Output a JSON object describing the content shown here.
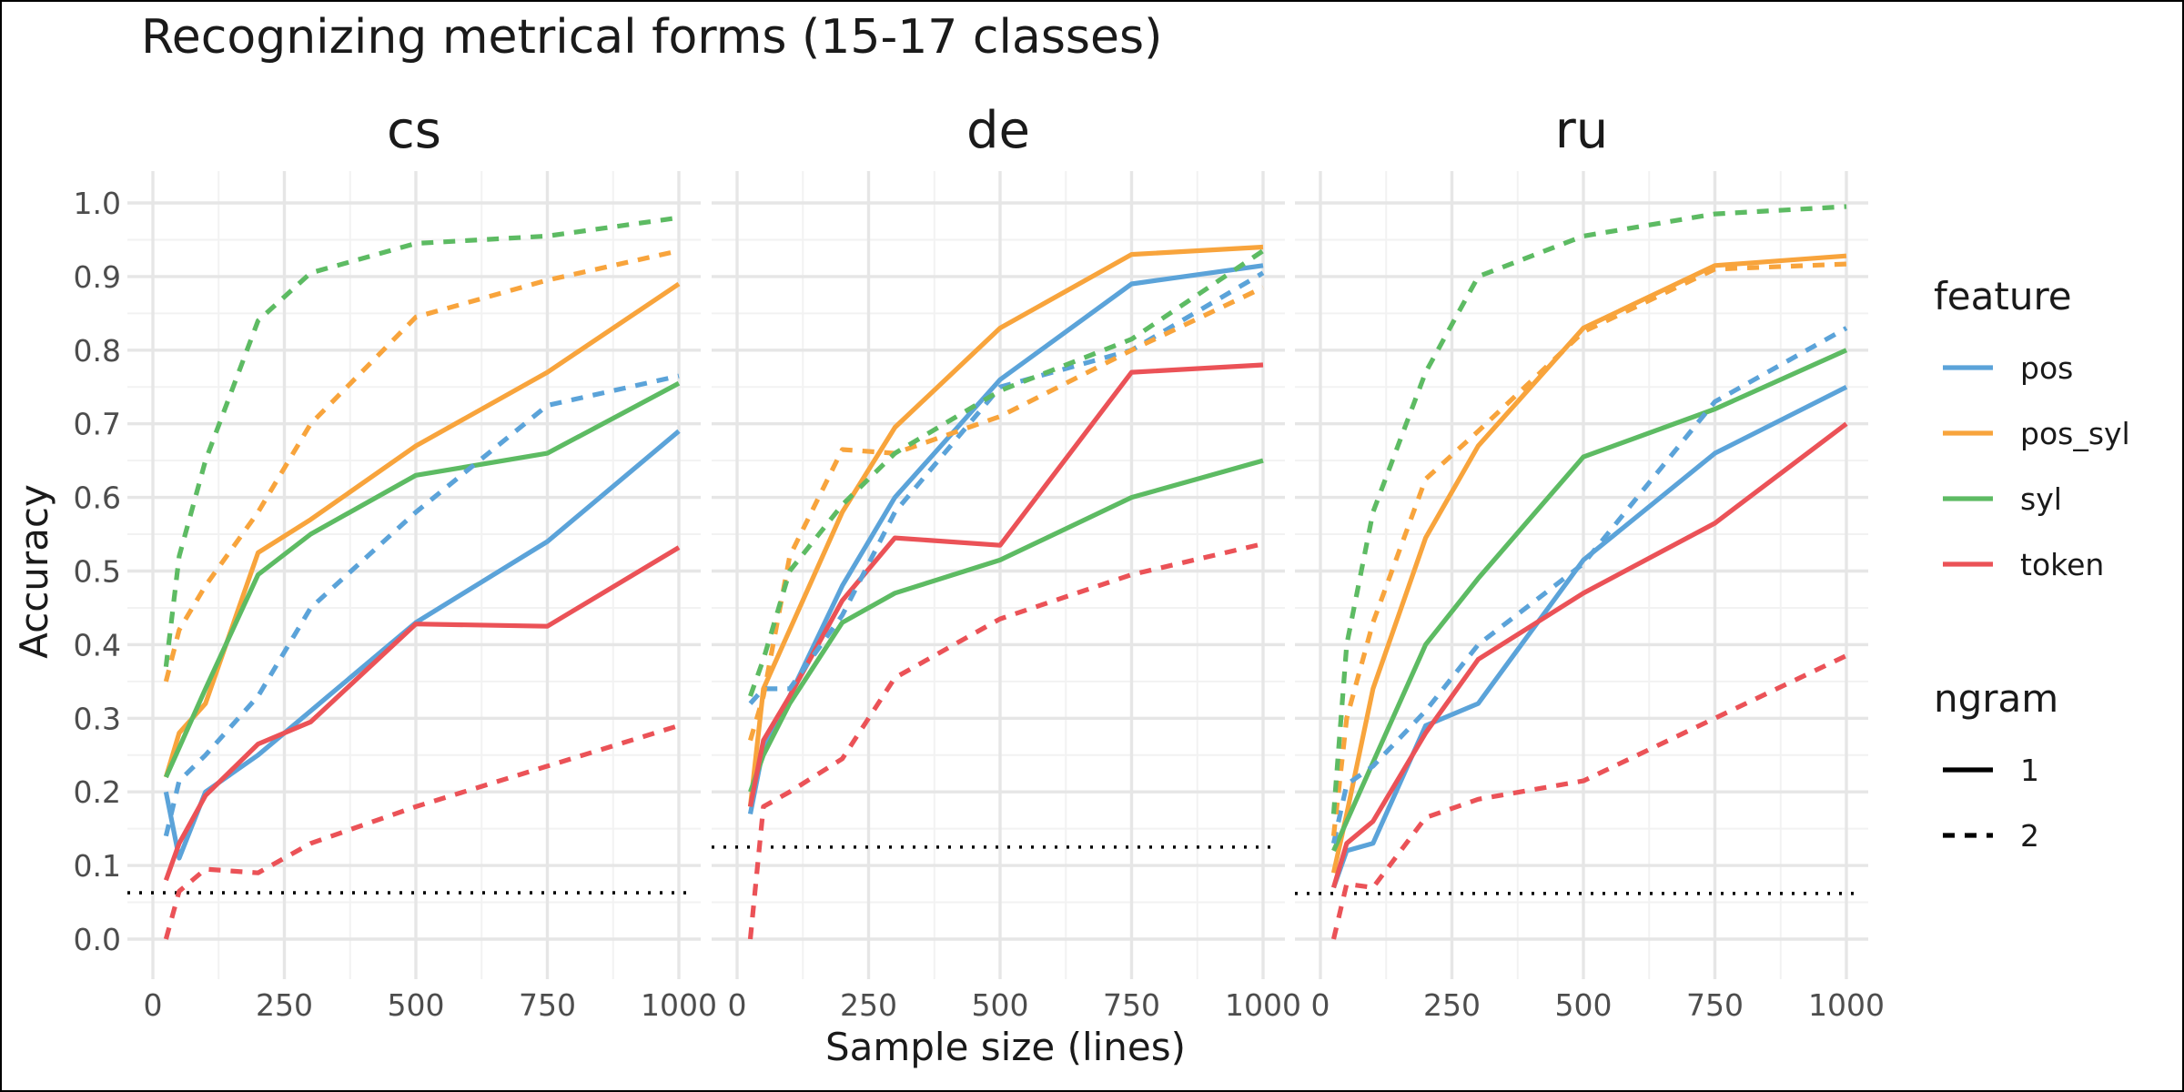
{
  "chart_data": {
    "type": "line",
    "title": "Recognizing metrical forms (15-17 classes)",
    "xlabel": "Sample size (lines)",
    "ylabel": "Accuracy",
    "xlim": [
      0,
      1000
    ],
    "ylim": [
      0,
      1.0
    ],
    "x_ticks": [
      0,
      250,
      500,
      750,
      1000
    ],
    "y_ticks": [
      0.0,
      0.1,
      0.2,
      0.3,
      0.4,
      0.5,
      0.6,
      0.7,
      0.8,
      0.9,
      1.0
    ],
    "x_tick_labels": [
      "0",
      "250",
      "500",
      "750",
      "1000"
    ],
    "y_tick_labels": [
      "0.0",
      "0.1",
      "0.2",
      "0.3",
      "0.4",
      "0.5",
      "0.6",
      "0.7",
      "0.8",
      "0.9",
      "1.0"
    ],
    "x": [
      25,
      50,
      100,
      200,
      300,
      500,
      750,
      1000
    ],
    "grid": true,
    "legend": {
      "placement": "right",
      "feature_title": "feature",
      "features": [
        {
          "key": "pos",
          "label": "pos",
          "color": "#5BA3D9"
        },
        {
          "key": "pos_syl",
          "label": "pos_syl",
          "color": "#F8A43C"
        },
        {
          "key": "syl",
          "label": "syl",
          "color": "#5DBB63"
        },
        {
          "key": "token",
          "label": "token",
          "color": "#EB5257"
        }
      ],
      "ngram_title": "ngram",
      "ngrams": [
        {
          "key": "1",
          "label": "1",
          "style": "solid"
        },
        {
          "key": "2",
          "label": "2",
          "style": "dashed"
        }
      ]
    },
    "facets": [
      {
        "name": "cs",
        "baseline": 0.063,
        "series": [
          {
            "feature": "pos",
            "ngram": "1",
            "values": [
              0.2,
              0.11,
              0.2,
              0.25,
              0.31,
              0.43,
              0.54,
              0.69
            ]
          },
          {
            "feature": "pos_syl",
            "ngram": "1",
            "values": [
              0.22,
              0.28,
              0.32,
              0.525,
              0.57,
              0.67,
              0.77,
              0.89
            ]
          },
          {
            "feature": "syl",
            "ngram": "1",
            "values": [
              0.22,
              0.26,
              0.34,
              0.495,
              0.55,
              0.63,
              0.66,
              0.755
            ]
          },
          {
            "feature": "token",
            "ngram": "1",
            "values": [
              0.08,
              0.13,
              0.195,
              0.265,
              0.295,
              0.428,
              0.425,
              0.532
            ]
          },
          {
            "feature": "pos",
            "ngram": "2",
            "values": [
              0.14,
              0.215,
              0.25,
              0.33,
              0.45,
              0.58,
              0.725,
              0.765
            ]
          },
          {
            "feature": "pos_syl",
            "ngram": "2",
            "values": [
              0.35,
              0.42,
              0.48,
              0.58,
              0.7,
              0.845,
              0.895,
              0.935
            ]
          },
          {
            "feature": "syl",
            "ngram": "2",
            "values": [
              0.37,
              0.52,
              0.65,
              0.84,
              0.905,
              0.945,
              0.955,
              0.98
            ]
          },
          {
            "feature": "token",
            "ngram": "2",
            "values": [
              0.0,
              0.065,
              0.095,
              0.09,
              0.13,
              0.18,
              0.235,
              0.29
            ]
          }
        ]
      },
      {
        "name": "de",
        "baseline": 0.125,
        "series": [
          {
            "feature": "pos",
            "ngram": "1",
            "values": [
              0.17,
              0.26,
              0.33,
              0.48,
              0.6,
              0.76,
              0.89,
              0.915
            ]
          },
          {
            "feature": "pos_syl",
            "ngram": "1",
            "values": [
              0.18,
              0.34,
              0.42,
              0.58,
              0.695,
              0.83,
              0.93,
              0.94
            ]
          },
          {
            "feature": "syl",
            "ngram": "1",
            "values": [
              0.2,
              0.25,
              0.32,
              0.43,
              0.47,
              0.515,
              0.6,
              0.65
            ]
          },
          {
            "feature": "token",
            "ngram": "1",
            "values": [
              0.18,
              0.27,
              0.33,
              0.46,
              0.545,
              0.535,
              0.77,
              0.78
            ]
          },
          {
            "feature": "pos",
            "ngram": "2",
            "values": [
              0.32,
              0.34,
              0.34,
              0.44,
              0.58,
              0.75,
              0.8,
              0.905
            ]
          },
          {
            "feature": "pos_syl",
            "ngram": "2",
            "values": [
              0.27,
              0.33,
              0.52,
              0.665,
              0.66,
              0.71,
              0.8,
              0.885
            ]
          },
          {
            "feature": "syl",
            "ngram": "2",
            "values": [
              0.33,
              0.38,
              0.5,
              0.59,
              0.66,
              0.745,
              0.815,
              0.935
            ]
          },
          {
            "feature": "token",
            "ngram": "2",
            "values": [
              0.0,
              0.18,
              0.2,
              0.245,
              0.355,
              0.435,
              0.495,
              0.537
            ]
          }
        ]
      },
      {
        "name": "ru",
        "baseline": 0.062,
        "series": [
          {
            "feature": "pos",
            "ngram": "1",
            "values": [
              0.07,
              0.12,
              0.13,
              0.29,
              0.32,
              0.515,
              0.66,
              0.75
            ]
          },
          {
            "feature": "pos_syl",
            "ngram": "1",
            "values": [
              0.09,
              0.17,
              0.34,
              0.545,
              0.67,
              0.83,
              0.915,
              0.928
            ]
          },
          {
            "feature": "syl",
            "ngram": "1",
            "values": [
              0.12,
              0.16,
              0.24,
              0.4,
              0.49,
              0.655,
              0.72,
              0.8
            ]
          },
          {
            "feature": "token",
            "ngram": "1",
            "values": [
              0.07,
              0.13,
              0.16,
              0.28,
              0.38,
              0.47,
              0.565,
              0.7
            ]
          },
          {
            "feature": "pos",
            "ngram": "2",
            "values": [
              0.13,
              0.21,
              0.235,
              0.31,
              0.4,
              0.51,
              0.73,
              0.83
            ]
          },
          {
            "feature": "pos_syl",
            "ngram": "2",
            "values": [
              0.14,
              0.3,
              0.43,
              0.625,
              0.69,
              0.825,
              0.91,
              0.917
            ]
          },
          {
            "feature": "syl",
            "ngram": "2",
            "values": [
              0.17,
              0.4,
              0.58,
              0.77,
              0.9,
              0.955,
              0.985,
              0.995
            ]
          },
          {
            "feature": "token",
            "ngram": "2",
            "values": [
              0.0,
              0.075,
              0.07,
              0.165,
              0.19,
              0.215,
              0.3,
              0.385
            ]
          }
        ]
      }
    ]
  }
}
